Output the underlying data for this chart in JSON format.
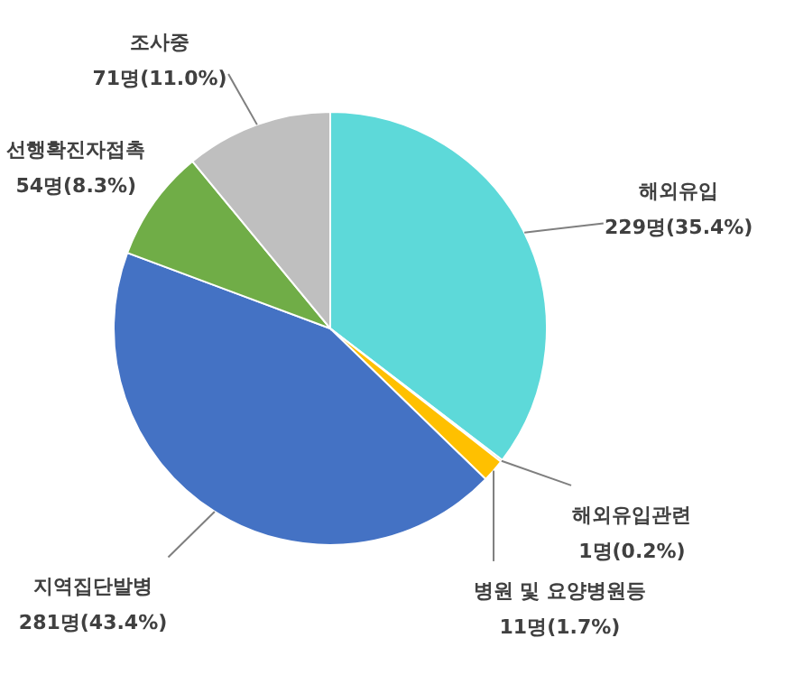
{
  "chart_data": {
    "type": "pie",
    "categories": [
      "해외유입",
      "해외유입관련",
      "병원 및 요양병원등",
      "지역집단발병",
      "선행확진자접촉",
      "조사중"
    ],
    "values": [
      229,
      1,
      11,
      281,
      54,
      71
    ],
    "value_labels": [
      "229명(35.4%)",
      "1명(0.2%)",
      "11명(1.7%)",
      "281명(43.4%)",
      "54명(8.3%)",
      "71명(11.0%)"
    ],
    "colors": [
      "#5dd9d9",
      "#ed7d31",
      "#ffc000",
      "#4472c4",
      "#70ad47",
      "#bfbfbf"
    ]
  }
}
